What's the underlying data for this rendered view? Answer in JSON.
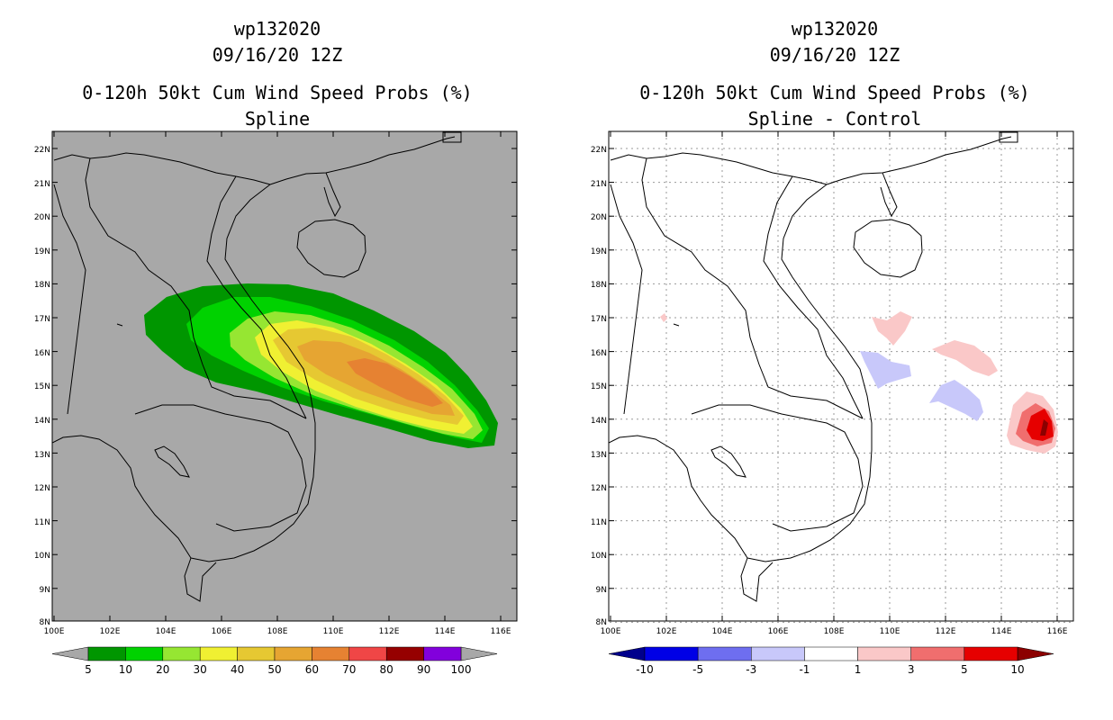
{
  "panels": [
    {
      "id": "left",
      "title_lines": [
        "wp132020",
        "09/16/20 12Z",
        "0-120h 50kt Cum Wind Speed Probs (%)",
        "Spline"
      ],
      "background": "#a8a8a8",
      "lat_labels": [
        "22N",
        "21N",
        "20N",
        "19N",
        "18N",
        "17N",
        "16N",
        "15N",
        "14N",
        "13N",
        "12N",
        "11N",
        "10N",
        "9N",
        "8N"
      ],
      "lon_labels": [
        "100E",
        "102E",
        "104E",
        "106E",
        "108E",
        "110E",
        "112E",
        "114E",
        "116E"
      ],
      "colorbar": {
        "labels": [
          "5",
          "10",
          "20",
          "30",
          "40",
          "50",
          "60",
          "70",
          "80",
          "90",
          "100"
        ],
        "colors": [
          "#009600",
          "#00d200",
          "#96e632",
          "#f0f032",
          "#e6c832",
          "#e6a532",
          "#e68232",
          "#f04646",
          "#960000",
          "#8200dc"
        ],
        "end_left": "#a8a8a8",
        "end_right": "#a8a8a8"
      }
    },
    {
      "id": "right",
      "title_lines": [
        "wp132020",
        "09/16/20 12Z",
        "0-120h 50kt Cum Wind Speed Probs (%)",
        "Spline - Control"
      ],
      "background": "#ffffff",
      "lat_labels": [
        "22N",
        "21N",
        "20N",
        "19N",
        "18N",
        "17N",
        "16N",
        "15N",
        "14N",
        "13N",
        "12N",
        "11N",
        "10N",
        "9N",
        "8N"
      ],
      "lon_labels": [
        "100E",
        "102E",
        "104E",
        "106E",
        "108E",
        "110E",
        "112E",
        "114E",
        "116E"
      ],
      "colorbar": {
        "labels": [
          "-10",
          "-5",
          "-3",
          "-1",
          "1",
          "3",
          "5",
          "10"
        ],
        "colors": [
          "#0000e6",
          "#6e6ef0",
          "#c8c8fa",
          "#ffffff",
          "#fac8c8",
          "#f06e6e",
          "#e60000"
        ],
        "end_left": "#00008c",
        "end_right": "#8c0000"
      }
    }
  ]
}
